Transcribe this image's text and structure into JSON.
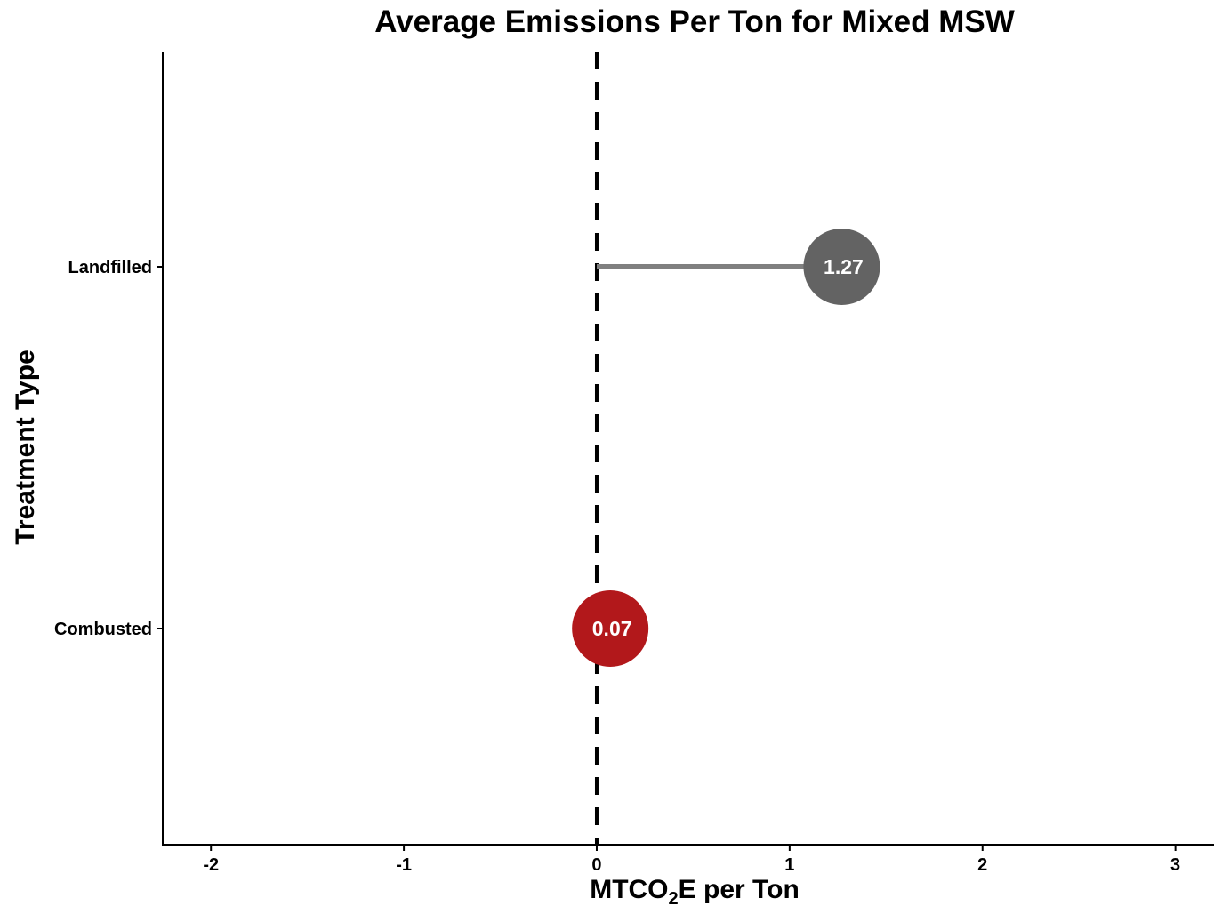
{
  "chart_data": {
    "type": "lollipop",
    "title": "Average Emissions Per Ton for Mixed MSW",
    "xlabel": {
      "main": "MTCO",
      "subscript": "2",
      "suffix": "E per Ton"
    },
    "ylabel": "Treatment Type",
    "xlim": [
      -2.25,
      3.2
    ],
    "x_ticks": [
      -2,
      -1,
      0,
      1,
      2,
      3
    ],
    "reference_line": {
      "x": 0,
      "style": "dashed",
      "color": "#000000"
    },
    "grid": false,
    "categories": [
      "Landfilled",
      "Combusted"
    ],
    "points": [
      {
        "category": "Landfilled",
        "value": 1.27,
        "label": "1.27",
        "color": "#636363",
        "stem_color": "#808080"
      },
      {
        "category": "Combusted",
        "value": 0.07,
        "label": "0.07",
        "color": "#b2181b",
        "stem_color": "#808080"
      }
    ]
  }
}
